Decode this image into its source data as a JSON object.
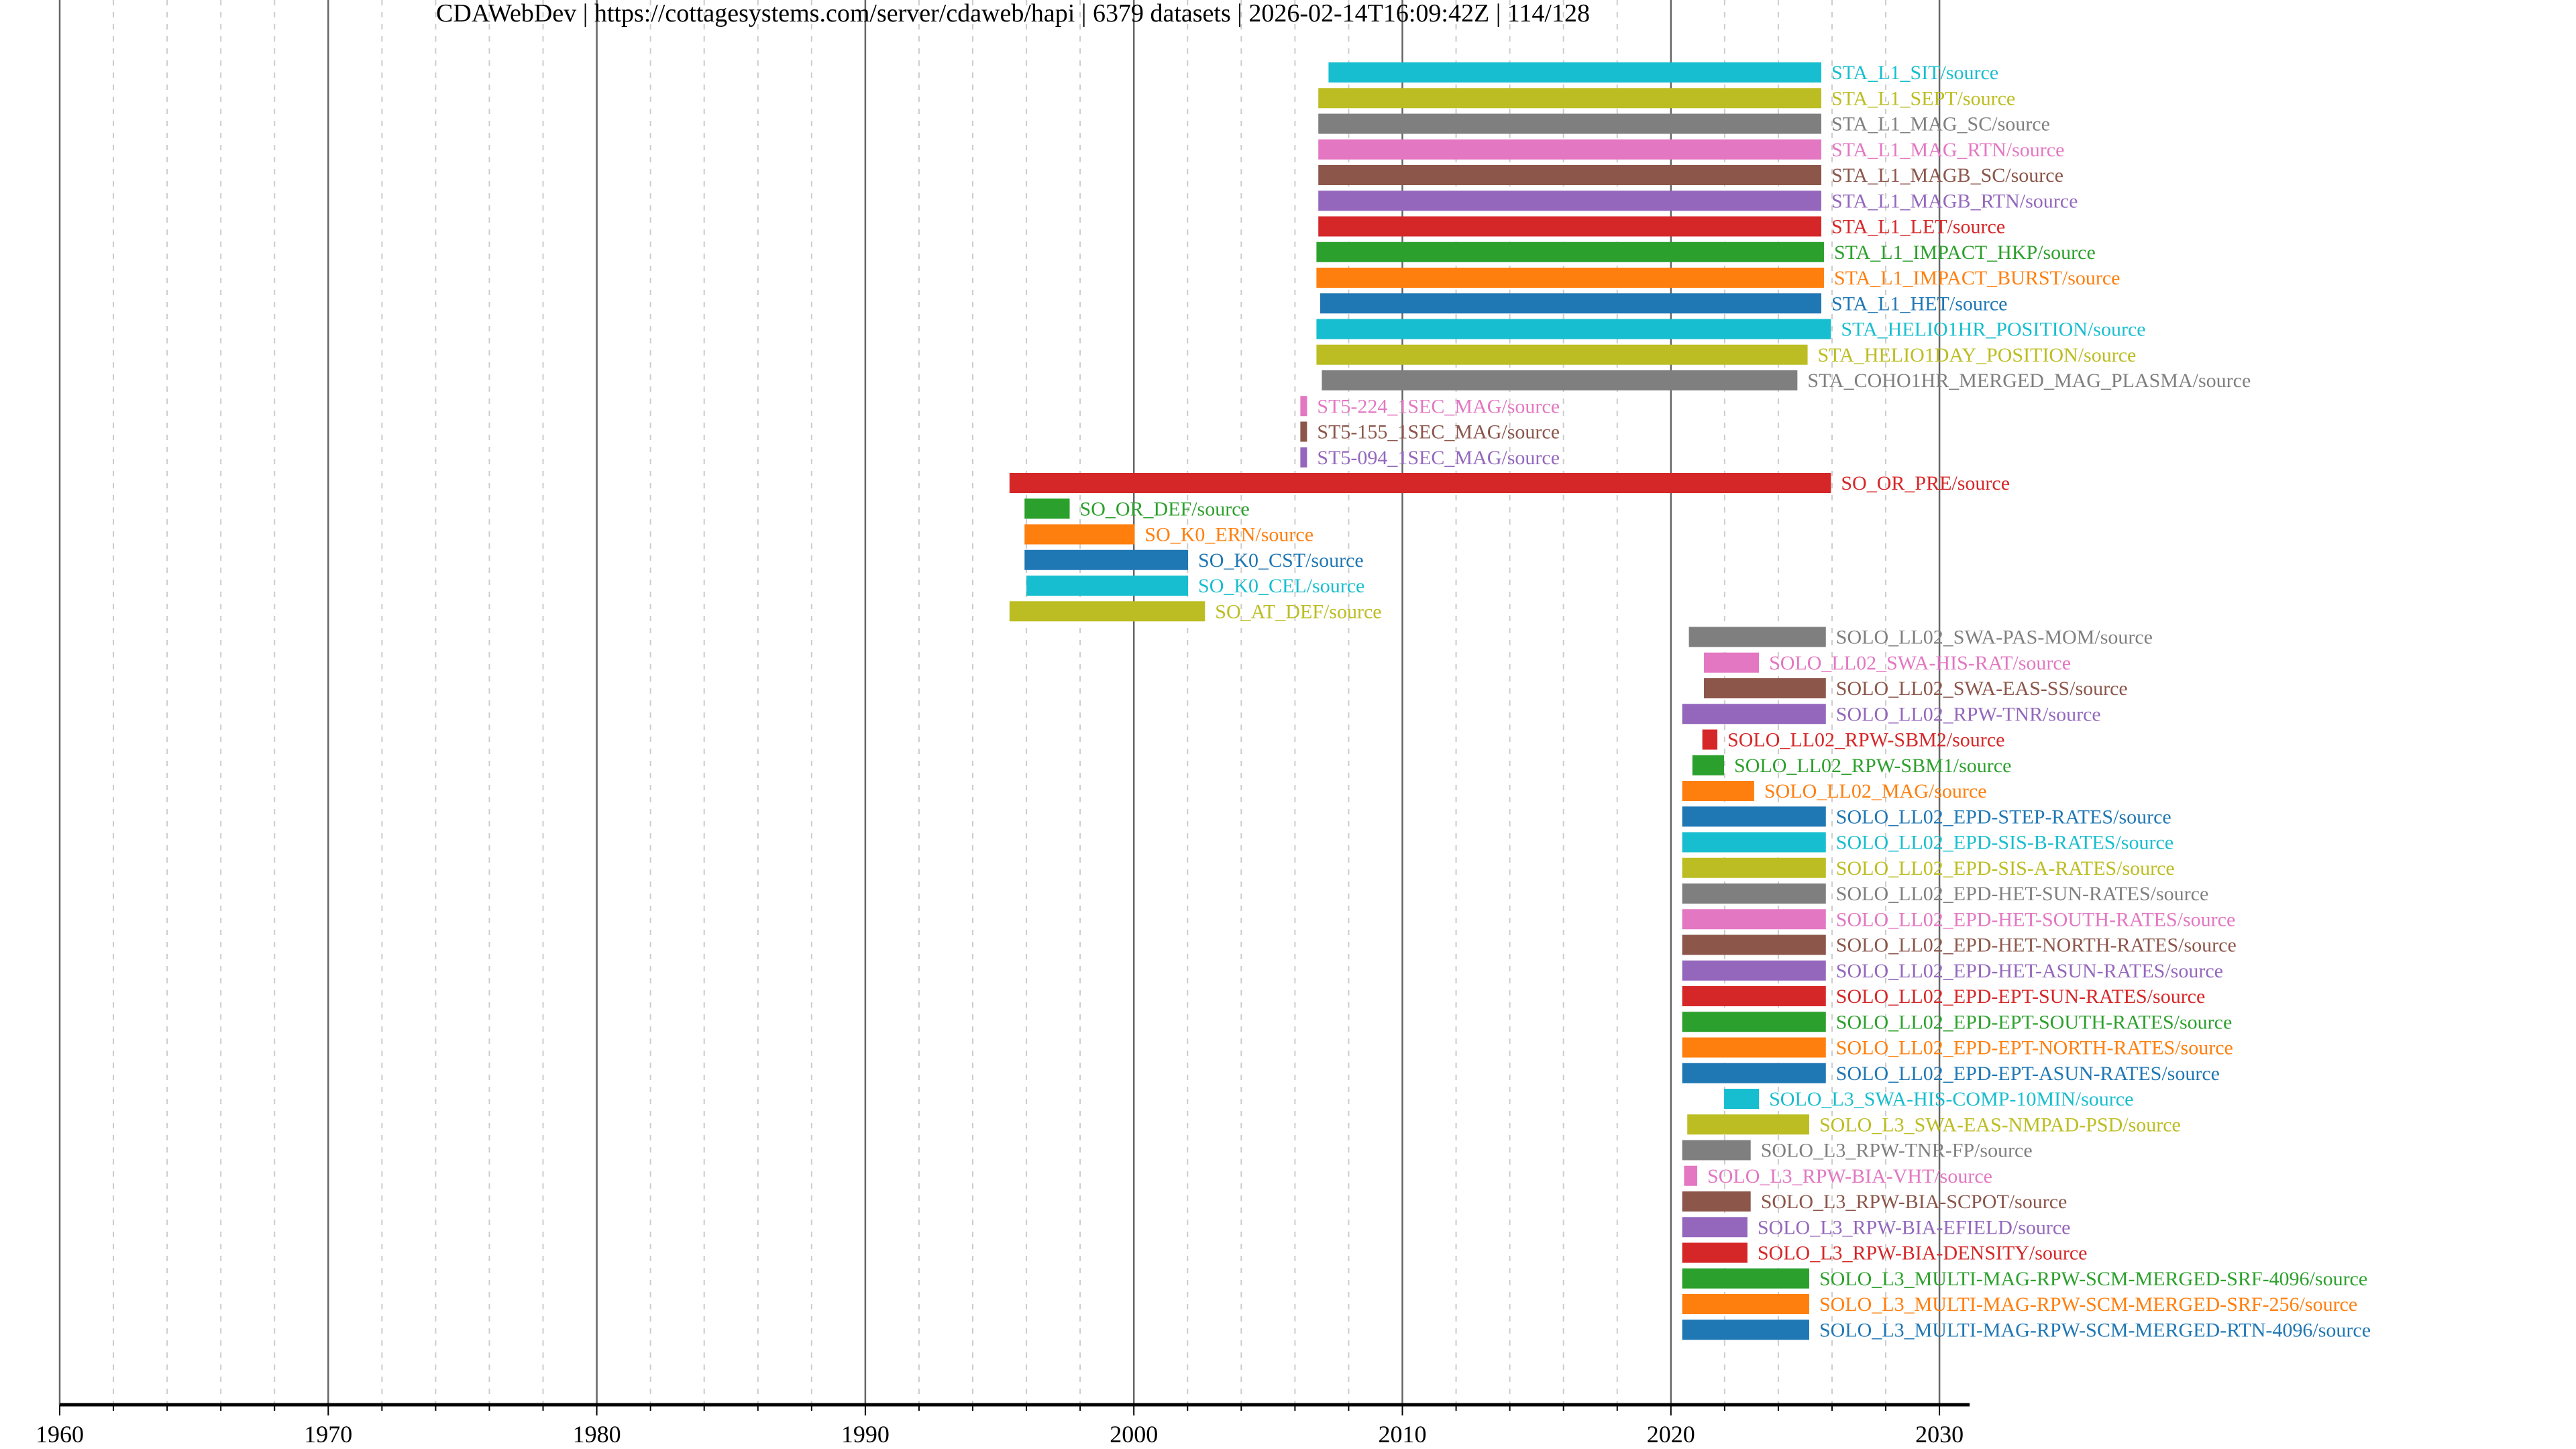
{
  "title": "CDAWebDev | https://cottagesystems.com/server/cdaweb/hapi | 6379 datasets | 2026-02-14T16:09:42Z | 114/128",
  "chart_data": {
    "type": "bar",
    "orientation": "horizontal-timeline",
    "xlim": [
      1960,
      2031
    ],
    "xticks": [
      "1960",
      "1970",
      "1980",
      "1990",
      "2000",
      "2010",
      "2020",
      "2030"
    ],
    "grid": "major solid every 10 years, minor dashed every 2 years",
    "datasets": [
      {
        "label": "STA_L1_SIT/source",
        "start": 2007.25,
        "end": 2025.6,
        "color": "#17becf"
      },
      {
        "label": "STA_L1_SEPT/source",
        "start": 2006.87,
        "end": 2025.6,
        "color": "#bcbd22"
      },
      {
        "label": "STA_L1_MAG_SC/source",
        "start": 2006.87,
        "end": 2025.6,
        "color": "#7f7f7f"
      },
      {
        "label": "STA_L1_MAG_RTN/source",
        "start": 2006.87,
        "end": 2025.6,
        "color": "#e377c2"
      },
      {
        "label": "STA_L1_MAGB_SC/source",
        "start": 2006.87,
        "end": 2025.6,
        "color": "#8c564b"
      },
      {
        "label": "STA_L1_MAGB_RTN/source",
        "start": 2006.87,
        "end": 2025.6,
        "color": "#9467bd"
      },
      {
        "label": "STA_L1_LET/source",
        "start": 2006.87,
        "end": 2025.6,
        "color": "#d62728"
      },
      {
        "label": "STA_L1_IMPACT_HKP/source",
        "start": 2006.8,
        "end": 2025.7,
        "color": "#2ca02c"
      },
      {
        "label": "STA_L1_IMPACT_BURST/source",
        "start": 2006.8,
        "end": 2025.7,
        "color": "#ff7f0e"
      },
      {
        "label": "STA_L1_HET/source",
        "start": 2006.94,
        "end": 2025.6,
        "color": "#1f77b4"
      },
      {
        "label": "STA_HELIO1HR_POSITION/source",
        "start": 2006.8,
        "end": 2025.96,
        "color": "#17becf"
      },
      {
        "label": "STA_HELIO1DAY_POSITION/source",
        "start": 2006.8,
        "end": 2025.09,
        "color": "#bcbd22"
      },
      {
        "label": "STA_COHO1HR_MERGED_MAG_PLASMA/source",
        "start": 2007.0,
        "end": 2024.71,
        "color": "#7f7f7f"
      },
      {
        "label": "ST5-224_1SEC_MAG/source",
        "start": 2006.2,
        "end": 2006.45,
        "color": "#e377c2"
      },
      {
        "label": "ST5-155_1SEC_MAG/source",
        "start": 2006.2,
        "end": 2006.45,
        "color": "#8c564b"
      },
      {
        "label": "ST5-094_1SEC_MAG/source",
        "start": 2006.2,
        "end": 2006.45,
        "color": "#9467bd"
      },
      {
        "label": "SO_OR_PRE/source",
        "start": 1995.37,
        "end": 2025.96,
        "color": "#d62728"
      },
      {
        "label": "SO_OR_DEF/source",
        "start": 1995.93,
        "end": 1997.61,
        "color": "#2ca02c"
      },
      {
        "label": "SO_K0_ERN/source",
        "start": 1995.93,
        "end": 2000.03,
        "color": "#ff7f0e"
      },
      {
        "label": "SO_K0_CST/source",
        "start": 1995.93,
        "end": 2002.02,
        "color": "#1f77b4"
      },
      {
        "label": "SO_K0_CEL/source",
        "start": 1996.0,
        "end": 2002.02,
        "color": "#17becf"
      },
      {
        "label": "SO_AT_DEF/source",
        "start": 1995.37,
        "end": 2002.65,
        "color": "#bcbd22"
      },
      {
        "label": "SOLO_LL02_SWA-PAS-MOM/source",
        "start": 2020.67,
        "end": 2025.77,
        "color": "#7f7f7f"
      },
      {
        "label": "SOLO_LL02_SWA-HIS-RAT/source",
        "start": 2021.23,
        "end": 2023.28,
        "color": "#e377c2"
      },
      {
        "label": "SOLO_LL02_SWA-EAS-SS/source",
        "start": 2021.23,
        "end": 2025.77,
        "color": "#8c564b"
      },
      {
        "label": "SOLO_LL02_RPW-TNR/source",
        "start": 2020.42,
        "end": 2025.77,
        "color": "#9467bd"
      },
      {
        "label": "SOLO_LL02_RPW-SBM2/source",
        "start": 2021.17,
        "end": 2021.73,
        "color": "#d62728"
      },
      {
        "label": "SOLO_LL02_RPW-SBM1/source",
        "start": 2020.8,
        "end": 2021.98,
        "color": "#2ca02c"
      },
      {
        "label": "SOLO_LL02_MAG/source",
        "start": 2020.42,
        "end": 2023.1,
        "color": "#ff7f0e"
      },
      {
        "label": "SOLO_LL02_EPD-STEP-RATES/source",
        "start": 2020.42,
        "end": 2025.77,
        "color": "#1f77b4"
      },
      {
        "label": "SOLO_LL02_EPD-SIS-B-RATES/source",
        "start": 2020.42,
        "end": 2025.77,
        "color": "#17becf"
      },
      {
        "label": "SOLO_LL02_EPD-SIS-A-RATES/source",
        "start": 2020.42,
        "end": 2025.77,
        "color": "#bcbd22"
      },
      {
        "label": "SOLO_LL02_EPD-HET-SUN-RATES/source",
        "start": 2020.42,
        "end": 2025.77,
        "color": "#7f7f7f"
      },
      {
        "label": "SOLO_LL02_EPD-HET-SOUTH-RATES/source",
        "start": 2020.42,
        "end": 2025.77,
        "color": "#e377c2"
      },
      {
        "label": "SOLO_LL02_EPD-HET-NORTH-RATES/source",
        "start": 2020.42,
        "end": 2025.77,
        "color": "#8c564b"
      },
      {
        "label": "SOLO_LL02_EPD-HET-ASUN-RATES/source",
        "start": 2020.42,
        "end": 2025.77,
        "color": "#9467bd"
      },
      {
        "label": "SOLO_LL02_EPD-EPT-SUN-RATES/source",
        "start": 2020.42,
        "end": 2025.77,
        "color": "#d62728"
      },
      {
        "label": "SOLO_LL02_EPD-EPT-SOUTH-RATES/source",
        "start": 2020.42,
        "end": 2025.77,
        "color": "#2ca02c"
      },
      {
        "label": "SOLO_LL02_EPD-EPT-NORTH-RATES/source",
        "start": 2020.42,
        "end": 2025.77,
        "color": "#ff7f0e"
      },
      {
        "label": "SOLO_LL02_EPD-EPT-ASUN-RATES/source",
        "start": 2020.42,
        "end": 2025.77,
        "color": "#1f77b4"
      },
      {
        "label": "SOLO_L3_SWA-HIS-COMP-10MIN/source",
        "start": 2021.98,
        "end": 2023.28,
        "color": "#17becf"
      },
      {
        "label": "SOLO_L3_SWA-EAS-NMPAD-PSD/source",
        "start": 2020.61,
        "end": 2025.15,
        "color": "#bcbd22"
      },
      {
        "label": "SOLO_L3_RPW-TNR-FP/source",
        "start": 2020.42,
        "end": 2022.97,
        "color": "#7f7f7f"
      },
      {
        "label": "SOLO_L3_RPW-BIA-VHT/source",
        "start": 2020.49,
        "end": 2020.98,
        "color": "#e377c2"
      },
      {
        "label": "SOLO_L3_RPW-BIA-SCPOT/source",
        "start": 2020.42,
        "end": 2022.97,
        "color": "#8c564b"
      },
      {
        "label": "SOLO_L3_RPW-BIA-EFIELD/source",
        "start": 2020.42,
        "end": 2022.85,
        "color": "#9467bd"
      },
      {
        "label": "SOLO_L3_RPW-BIA-DENSITY/source",
        "start": 2020.42,
        "end": 2022.85,
        "color": "#d62728"
      },
      {
        "label": "SOLO_L3_MULTI-MAG-RPW-SCM-MERGED-SRF-4096/source",
        "start": 2020.42,
        "end": 2025.15,
        "color": "#2ca02c"
      },
      {
        "label": "SOLO_L3_MULTI-MAG-RPW-SCM-MERGED-SRF-256/source",
        "start": 2020.42,
        "end": 2025.15,
        "color": "#ff7f0e"
      },
      {
        "label": "SOLO_L3_MULTI-MAG-RPW-SCM-MERGED-RTN-4096/source",
        "start": 2020.42,
        "end": 2025.15,
        "color": "#1f77b4"
      }
    ]
  }
}
